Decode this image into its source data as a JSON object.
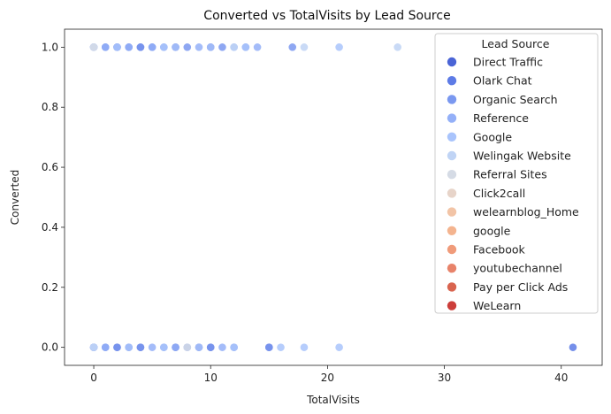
{
  "chart_data": {
    "type": "scatter",
    "title": "Converted vs TotalVisits by Lead Source",
    "xlabel": "TotalVisits",
    "ylabel": "Converted",
    "xlim": [
      -2.5,
      43.5
    ],
    "ylim": [
      -0.06,
      1.06
    ],
    "xticks": [
      0,
      10,
      20,
      30,
      40
    ],
    "yticks": [
      0.0,
      0.2,
      0.4,
      0.6,
      0.8,
      1.0
    ],
    "xtick_labels": [
      "0",
      "10",
      "20",
      "30",
      "40"
    ],
    "ytick_labels": [
      "0.0",
      "0.2",
      "0.4",
      "0.6",
      "0.8",
      "1.0"
    ],
    "grid": false,
    "legend": {
      "title": "Lead Source",
      "placement": "top-right"
    },
    "series": [
      {
        "name": "Direct Traffic",
        "color": "#4a64d6",
        "points": [
          [
            0,
            1
          ],
          [
            2,
            1
          ],
          [
            4,
            1
          ],
          [
            7,
            1
          ],
          [
            10,
            1
          ],
          [
            0,
            0
          ],
          [
            2,
            0
          ],
          [
            4,
            0
          ],
          [
            7,
            0
          ],
          [
            9,
            0
          ],
          [
            10,
            0
          ],
          [
            15,
            0
          ]
        ]
      },
      {
        "name": "Olark Chat",
        "color": "#5d7be6",
        "points": [
          [
            1,
            1
          ],
          [
            3,
            1
          ],
          [
            5,
            1
          ],
          [
            0,
            0
          ],
          [
            1,
            0
          ],
          [
            3,
            0
          ],
          [
            41,
            0
          ]
        ]
      },
      {
        "name": "Organic Search",
        "color": "#7a98f0",
        "points": [
          [
            2,
            1
          ],
          [
            4,
            1
          ],
          [
            6,
            1
          ],
          [
            8,
            1
          ],
          [
            11,
            1
          ],
          [
            13,
            1
          ],
          [
            17,
            1
          ],
          [
            0,
            0
          ],
          [
            2,
            0
          ],
          [
            4,
            0
          ],
          [
            6,
            0
          ],
          [
            8,
            0
          ],
          [
            10,
            0
          ],
          [
            12,
            0
          ],
          [
            15,
            0
          ]
        ]
      },
      {
        "name": "Reference",
        "color": "#94b0f8",
        "points": [
          [
            0,
            1
          ],
          [
            1,
            1
          ],
          [
            3,
            1
          ],
          [
            5,
            1
          ],
          [
            9,
            1
          ],
          [
            12,
            1
          ],
          [
            14,
            1
          ],
          [
            1,
            0
          ],
          [
            5,
            0
          ],
          [
            7,
            0
          ],
          [
            11,
            0
          ]
        ]
      },
      {
        "name": "Google",
        "color": "#a9c4fc",
        "points": [
          [
            0,
            1
          ],
          [
            2,
            1
          ],
          [
            6,
            1
          ],
          [
            7,
            1
          ],
          [
            10,
            1
          ],
          [
            13,
            1
          ],
          [
            21,
            1
          ],
          [
            0,
            0
          ],
          [
            3,
            0
          ],
          [
            6,
            0
          ],
          [
            9,
            0
          ],
          [
            12,
            0
          ],
          [
            16,
            0
          ],
          [
            18,
            0
          ],
          [
            21,
            0
          ]
        ]
      },
      {
        "name": "Welingak Website",
        "color": "#c0d4f5",
        "points": [
          [
            0,
            1
          ],
          [
            12,
            1
          ],
          [
            18,
            1
          ],
          [
            26,
            1
          ],
          [
            0,
            0
          ]
        ]
      },
      {
        "name": "Referral Sites",
        "color": "#d5dbe5",
        "points": [
          [
            0,
            1
          ],
          [
            8,
            0
          ]
        ]
      },
      {
        "name": "Click2call",
        "color": "#e7d4c9",
        "points": []
      },
      {
        "name": "welearnblog_Home",
        "color": "#f2c4a6",
        "points": []
      },
      {
        "name": "google",
        "color": "#f4b48f",
        "points": []
      },
      {
        "name": "Facebook",
        "color": "#f09b7a",
        "points": []
      },
      {
        "name": "youtubechannel",
        "color": "#e8836a",
        "points": []
      },
      {
        "name": "Pay per Click Ads",
        "color": "#d9644f",
        "points": []
      },
      {
        "name": "WeLearn",
        "color": "#cc3e3a",
        "points": []
      }
    ]
  }
}
